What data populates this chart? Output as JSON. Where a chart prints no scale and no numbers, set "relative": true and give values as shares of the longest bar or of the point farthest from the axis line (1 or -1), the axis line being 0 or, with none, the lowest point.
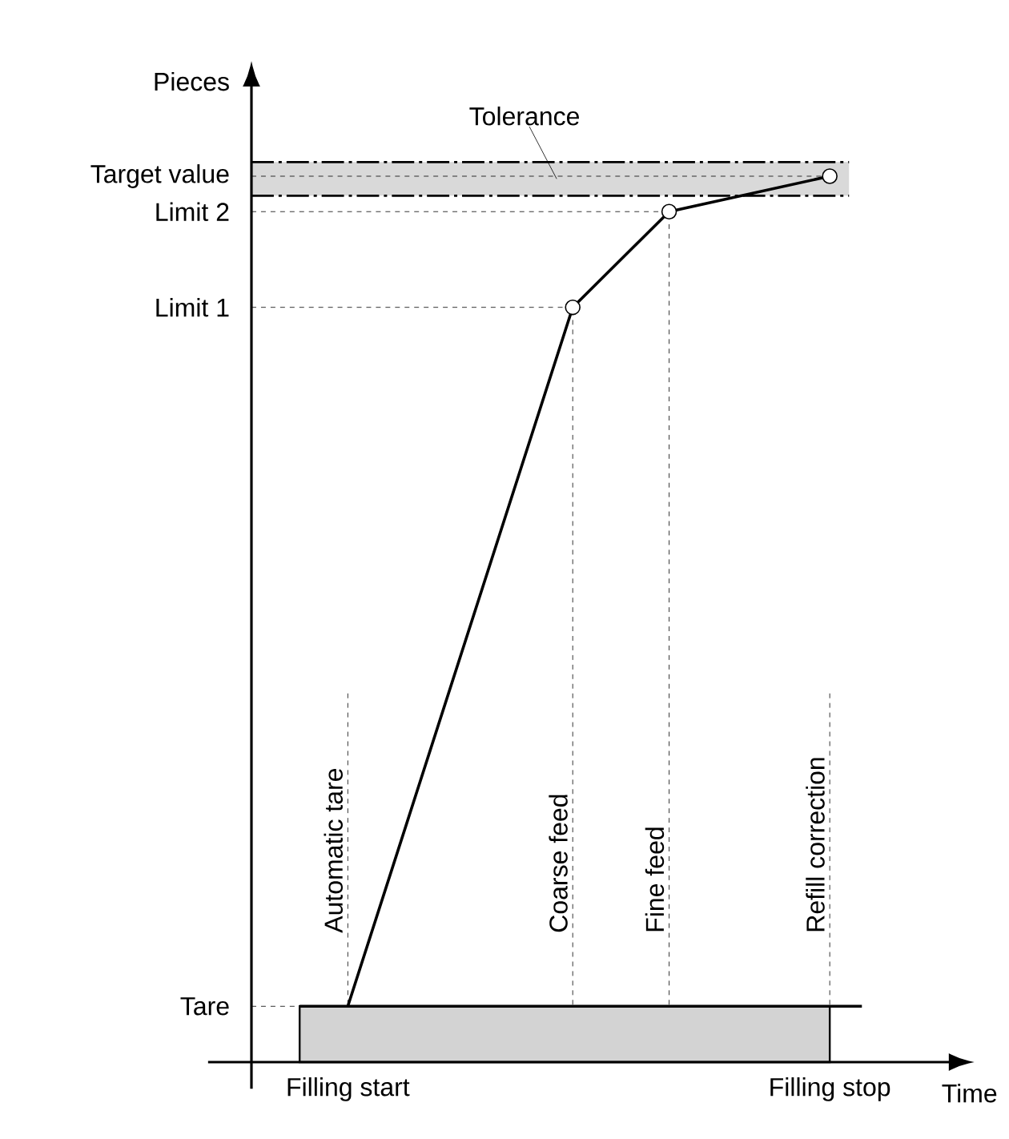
{
  "chart_data": {
    "type": "line",
    "relative": true,
    "xlabel": "Time",
    "ylabel": "Pieces",
    "categories": [
      null,
      null,
      null,
      null,
      null,
      null,
      "Filling start",
      null,
      null,
      null,
      null,
      null,
      null,
      null,
      null,
      null,
      null,
      null,
      null,
      null,
      null,
      null,
      null,
      null,
      null,
      null,
      null,
      null,
      null,
      null,
      null,
      null,
      null,
      null,
      null,
      null,
      "Filling stop",
      null,
      null
    ],
    "series": [
      {
        "type": "area",
        "color": "#d3d3d3",
        "values": [
          null,
          null,
          null,
          0.063,
          null,
          null,
          null,
          null,
          null,
          null,
          null,
          null,
          null,
          null,
          null,
          null,
          null,
          null,
          null,
          null,
          null,
          null,
          null,
          null,
          null,
          null,
          null,
          null,
          null,
          null,
          null,
          null,
          null,
          null,
          null,
          null,
          0.063,
          null,
          null
        ]
      },
      {
        "type": "line",
        "color": "#000000",
        "values": [
          null,
          null,
          null,
          0.063,
          null,
          null,
          null,
          null,
          null,
          null,
          null,
          null,
          null,
          null,
          null,
          null,
          null,
          null,
          null,
          null,
          null,
          null,
          null,
          null,
          null,
          null,
          null,
          null,
          null,
          null,
          null,
          null,
          null,
          null,
          null,
          null,
          null,
          null,
          0.063
        ]
      },
      {
        "type": "line",
        "color": "#000000",
        "values": [
          null,
          null,
          null,
          null,
          null,
          null,
          0.063,
          null,
          null,
          null,
          null,
          null,
          null,
          null,
          null,
          null,
          null,
          null,
          null,
          null,
          0.852,
          null,
          null,
          null,
          null,
          null,
          0.96,
          null,
          null,
          null,
          null,
          null,
          null,
          null,
          null,
          null,
          1.0,
          null,
          null
        ]
      },
      {
        "type": "scatter",
        "color": "#ffffff",
        "values": [
          null,
          null,
          null,
          null,
          null,
          null,
          null,
          null,
          null,
          null,
          null,
          null,
          null,
          null,
          null,
          null,
          null,
          null,
          null,
          null,
          0.852,
          null,
          null,
          null,
          null,
          null,
          0.96,
          null,
          null,
          null,
          null,
          null,
          null,
          null,
          null,
          null,
          1.0,
          null,
          null
        ]
      }
    ],
    "ref_lines": [
      {
        "axis": "y",
        "value": 0.063,
        "label": "Tare",
        "line_style": "dashed"
      },
      {
        "axis": "y",
        "value": 0.852,
        "label": "Limit 1",
        "line_style": "dashed"
      },
      {
        "axis": "y",
        "value": 0.96,
        "label": "Limit 2",
        "line_style": "dashed"
      },
      {
        "axis": "y",
        "value": 1.0,
        "label": "Target value",
        "line_style": "dashed"
      },
      {
        "axis": "y",
        "value": 0.978,
        "line_style": "dashed"
      },
      {
        "axis": "y",
        "value": 1.016,
        "line_style": "dashed"
      },
      {
        "axis": "x",
        "value": "Filling start",
        "label": "Automatic tare",
        "line_style": "dashed"
      },
      {
        "axis": "x",
        "value": "Filling stop",
        "label": "Refill correction",
        "line_style": "dashed"
      }
    ],
    "annotations": [
      "Coarse feed",
      "Fine feed"
    ],
    "bands": [
      {
        "axis": "y",
        "from": 0.978,
        "to": 1.016,
        "label": "Tolerance",
        "color": "#d9d9d9"
      }
    ]
  }
}
